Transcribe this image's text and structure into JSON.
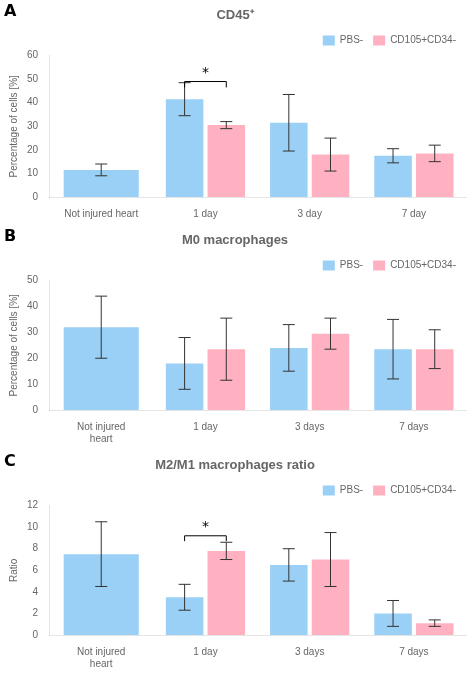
{
  "chart_data": [
    {
      "type": "bar",
      "panel_label": "A",
      "title": "CD45⁺",
      "ylabel": "Percentage of cells [%]",
      "categories": [
        "Not injured heart",
        "1 day",
        "3 day",
        "7 day"
      ],
      "series": [
        {
          "name": "PBS-",
          "values": [
            11.5,
            41.5,
            31.5,
            17.5
          ],
          "errors": [
            2.5,
            7.0,
            12.0,
            3.0
          ]
        },
        {
          "name": "CD105+CD34-",
          "values": [
            null,
            30.5,
            18.0,
            18.5
          ],
          "errors": [
            null,
            1.5,
            7.0,
            3.5
          ]
        }
      ],
      "ylim": [
        0,
        60
      ],
      "yticks": [
        0,
        10,
        20,
        30,
        40,
        50,
        60
      ],
      "grid": false,
      "legend": "upper right",
      "annotations": [
        {
          "text": "*",
          "category": "1 day",
          "y": 49,
          "drop": 2.5
        }
      ]
    },
    {
      "type": "bar",
      "panel_label": "B",
      "title": "M0 macrophages",
      "ylabel": "Percentage of cells [%]",
      "categories": [
        "Not injured\nheart",
        "1 day",
        "3 days",
        "7 days"
      ],
      "series": [
        {
          "name": "PBS-",
          "values": [
            32.0,
            18.0,
            24.0,
            23.5
          ],
          "errors": [
            12.0,
            10.0,
            9.0,
            11.5
          ]
        },
        {
          "name": "CD105+CD34-",
          "values": [
            null,
            23.5,
            29.5,
            23.5
          ],
          "errors": [
            null,
            12.0,
            6.0,
            7.5
          ]
        }
      ],
      "ylim": [
        0,
        50
      ],
      "yticks": [
        0,
        10,
        20,
        30,
        40,
        50
      ],
      "grid": false,
      "legend": "upper right"
    },
    {
      "type": "bar",
      "panel_label": "C",
      "title": "M2/M1 macrophages ratio",
      "ylabel": "Ratio",
      "categories": [
        "Not injured\nheart",
        "1 day",
        "3 days",
        "7 days"
      ],
      "series": [
        {
          "name": "PBS-",
          "values": [
            7.5,
            3.5,
            6.5,
            2.0
          ],
          "errors": [
            3.0,
            1.2,
            1.5,
            1.2
          ]
        },
        {
          "name": "CD105+CD34-",
          "values": [
            null,
            7.8,
            7.0,
            1.1
          ],
          "errors": [
            null,
            0.8,
            2.5,
            0.3
          ]
        }
      ],
      "ylim": [
        0,
        12
      ],
      "yticks": [
        0,
        2,
        4,
        6,
        8,
        10,
        12
      ],
      "grid": false,
      "legend": "upper right",
      "annotations": [
        {
          "text": "*",
          "category": "1 day",
          "y": 9.2,
          "drop": 0.5
        }
      ]
    }
  ]
}
